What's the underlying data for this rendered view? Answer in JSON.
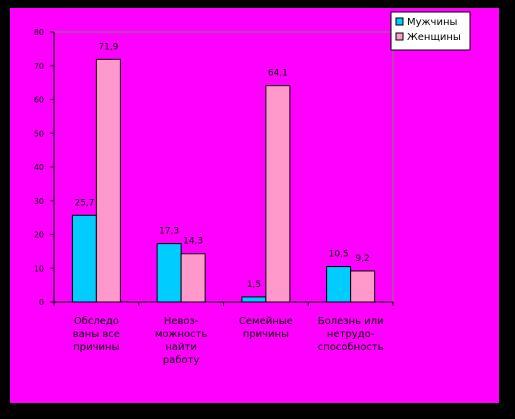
{
  "colors": {
    "outer_bg": "#000000",
    "chart_bg": "#ff00ff",
    "plot_bg": "#ff00ff",
    "series_men": "#00ccff",
    "series_women": "#ff99cc",
    "axis": "#000000",
    "legend_bg": "#ffffff"
  },
  "chart_data": {
    "type": "bar",
    "title": "",
    "xlabel": "",
    "ylabel": "",
    "ylim": [
      0,
      80
    ],
    "yticks": [
      0,
      10,
      20,
      30,
      40,
      50,
      60,
      70,
      80
    ],
    "grid": false,
    "legend_position": "top-right",
    "categories": [
      [
        "Обследо",
        "ваны все",
        "причины"
      ],
      [
        "Невоз-",
        "можность",
        "найти",
        "работу"
      ],
      [
        "Семейные",
        "причины"
      ],
      [
        "Болезнь или",
        "нетрудо-",
        "способность"
      ]
    ],
    "series": [
      {
        "name": "Мужчины",
        "values": [
          25.7,
          17.3,
          1.5,
          10.5
        ],
        "labels": [
          "25,7",
          "17,3",
          "1,5",
          "10,5"
        ]
      },
      {
        "name": "Женщины",
        "values": [
          71.9,
          14.3,
          64.1,
          9.2
        ],
        "labels": [
          "71,9",
          "14,3",
          "64,1",
          "9,2"
        ]
      }
    ]
  }
}
